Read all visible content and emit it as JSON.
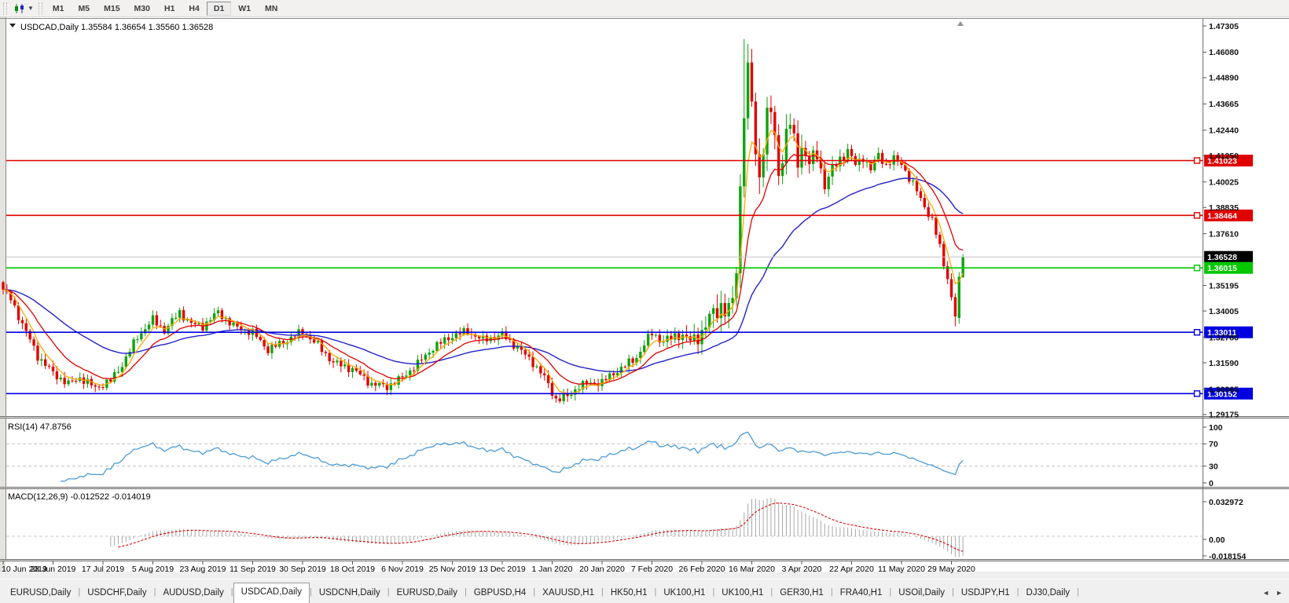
{
  "toolbar": {
    "chart_icon": "candlestick-chart-icon",
    "dropdown_icon": "chevron-down-icon",
    "timeframes": [
      "M1",
      "M5",
      "M15",
      "M30",
      "H1",
      "H4",
      "D1",
      "W1",
      "MN"
    ],
    "active_timeframe": "D1"
  },
  "chart": {
    "title": "USDCAD,Daily 1.35584 1.36654 1.35560 1.36528",
    "symbol": "USDCAD",
    "timeframe": "Daily"
  },
  "price_axis": {
    "ticks": [
      "1.47305",
      "1.46080",
      "1.44890",
      "1.43665",
      "1.42440",
      "1.41250",
      "1.40025",
      "1.38835",
      "1.37610",
      "1.35195",
      "1.34005",
      "1.32780",
      "1.31590",
      "1.30365",
      "1.29175"
    ]
  },
  "rsi": {
    "title": "RSI(14) 47.8756",
    "axis": [
      "100",
      "70",
      "30",
      "0"
    ]
  },
  "macd": {
    "title": "MACD(12,26,9) -0.012522 -0.014019",
    "axis": [
      "0.032972",
      "0.00",
      "-0.018154"
    ]
  },
  "dates": [
    "10 Jun 2019",
    "28 Jun 2019",
    "17 Jul 2019",
    "5 Aug 2019",
    "23 Aug 2019",
    "11 Sep 2019",
    "30 Sep 2019",
    "18 Oct 2019",
    "6 Nov 2019",
    "25 Nov 2019",
    "13 Dec 2019",
    "1 Jan 2020",
    "20 Jan 2020",
    "7 Feb 2020",
    "26 Feb 2020",
    "16 Mar 2020",
    "3 Apr 2020",
    "22 Apr 2020",
    "11 May 2020",
    "29 May 2020"
  ],
  "tabs": {
    "items": [
      "EURUSD,Daily",
      "USDCHF,Daily",
      "AUDUSD,Daily",
      "USDCAD,Daily",
      "USDCNH,Daily",
      "EURUSD,Daily",
      "GBPUSD,H4",
      "XAUUSD,H1",
      "HK50,H1",
      "UK100,H1",
      "UK100,H1",
      "GER30,H1",
      "FRA40,H1",
      "USOil,Daily",
      "USDJPY,H1",
      "DJ30,Daily"
    ],
    "active_index": 3,
    "nav_left": "◄",
    "nav_right": "►"
  },
  "chart_data": {
    "type": "candlestick",
    "symbol": "USDCAD",
    "timeframe": "Daily",
    "last_bar": {
      "open": 1.35584,
      "high": 1.36654,
      "low": 1.3556,
      "close": 1.36528
    },
    "price_range": [
      1.29175,
      1.47305
    ],
    "current_price": 1.36528,
    "horizontal_levels": [
      {
        "price": 1.41023,
        "color": "#E00000"
      },
      {
        "price": 1.38464,
        "color": "#E00000"
      },
      {
        "price": 1.36015,
        "color": "#00C800"
      },
      {
        "price": 1.33011,
        "color": "#0000E0"
      },
      {
        "price": 1.30152,
        "color": "#0000E0"
      }
    ],
    "indicators": [
      {
        "name": "RSI",
        "period": 14,
        "value": 47.8756,
        "levels": [
          70,
          30
        ]
      },
      {
        "name": "MACD",
        "fast": 12,
        "slow": 26,
        "signal": 9,
        "value": -0.012522,
        "signal_value": -0.014019,
        "range": [
          -0.018154,
          0.032972
        ]
      },
      {
        "name": "MA",
        "type": "EMA",
        "periods": [
          5,
          13,
          40
        ],
        "colors": [
          "#FFA800",
          "#DF0000",
          "#2222CC"
        ]
      }
    ],
    "x_labels": [
      "10 Jun 2019",
      "28 Jun 2019",
      "17 Jul 2019",
      "5 Aug 2019",
      "23 Aug 2019",
      "11 Sep 2019",
      "30 Sep 2019",
      "18 Oct 2019",
      "6 Nov 2019",
      "25 Nov 2019",
      "13 Dec 2019",
      "1 Jan 2020",
      "20 Jan 2020",
      "7 Feb 2020",
      "26 Feb 2020",
      "16 Mar 2020",
      "3 Apr 2020",
      "22 Apr 2020",
      "11 May 2020",
      "29 May 2020"
    ],
    "num_candles": 251,
    "close_waypoints": [
      [
        0,
        1.35
      ],
      [
        2,
        1.3455
      ],
      [
        5,
        1.334
      ],
      [
        9,
        1.319
      ],
      [
        13,
        1.311
      ],
      [
        17,
        1.306
      ],
      [
        20,
        1.309
      ],
      [
        24,
        1.3042
      ],
      [
        28,
        1.3075
      ],
      [
        31,
        1.315
      ],
      [
        35,
        1.328
      ],
      [
        39,
        1.336
      ],
      [
        42,
        1.331
      ],
      [
        46,
        1.3395
      ],
      [
        49,
        1.334
      ],
      [
        52,
        1.333
      ],
      [
        56,
        1.3395
      ],
      [
        60,
        1.333
      ],
      [
        65,
        1.33
      ],
      [
        69,
        1.322
      ],
      [
        73,
        1.3255
      ],
      [
        78,
        1.3305
      ],
      [
        82,
        1.324
      ],
      [
        86,
        1.316
      ],
      [
        91,
        1.313
      ],
      [
        96,
        1.306
      ],
      [
        100,
        1.3048
      ],
      [
        104,
        1.309
      ],
      [
        108,
        1.3155
      ],
      [
        112,
        1.323
      ],
      [
        117,
        1.3285
      ],
      [
        121,
        1.3305
      ],
      [
        125,
        1.3265
      ],
      [
        130,
        1.329
      ],
      [
        134,
        1.323
      ],
      [
        138,
        1.316
      ],
      [
        141,
        1.309
      ],
      [
        144,
        1.2988
      ],
      [
        147,
        1.3
      ],
      [
        150,
        1.3052
      ],
      [
        153,
        1.3062
      ],
      [
        156,
        1.3068
      ],
      [
        159,
        1.311
      ],
      [
        162,
        1.3145
      ],
      [
        165,
        1.3185
      ],
      [
        169,
        1.33
      ],
      [
        172,
        1.3255
      ],
      [
        176,
        1.3295
      ],
      [
        179,
        1.326
      ],
      [
        182,
        1.33
      ],
      [
        185,
        1.3395
      ],
      [
        187,
        1.3425
      ],
      [
        189,
        1.339
      ],
      [
        190,
        1.345
      ],
      [
        191,
        1.36
      ],
      [
        192,
        1.398
      ],
      [
        193,
        1.435
      ],
      [
        194,
        1.45
      ],
      [
        195,
        1.438
      ],
      [
        196,
        1.412
      ],
      [
        197,
        1.404
      ],
      [
        198,
        1.418
      ],
      [
        199,
        1.43
      ],
      [
        200,
        1.434
      ],
      [
        201,
        1.418
      ],
      [
        202,
        1.406
      ],
      [
        203,
        1.412
      ],
      [
        204,
        1.423
      ],
      [
        205,
        1.428
      ],
      [
        206,
        1.418
      ],
      [
        207,
        1.41
      ],
      [
        208,
        1.417
      ],
      [
        210,
        1.409
      ],
      [
        212,
        1.413
      ],
      [
        214,
        1.399
      ],
      [
        216,
        1.406
      ],
      [
        218,
        1.411
      ],
      [
        220,
        1.415
      ],
      [
        222,
        1.408
      ],
      [
        224,
        1.412
      ],
      [
        226,
        1.406
      ],
      [
        228,
        1.413
      ],
      [
        230,
        1.408
      ],
      [
        232,
        1.411
      ],
      [
        234,
        1.409
      ],
      [
        236,
        1.402
      ],
      [
        238,
        1.396
      ],
      [
        240,
        1.389
      ],
      [
        242,
        1.382
      ],
      [
        244,
        1.37
      ],
      [
        245,
        1.362
      ],
      [
        246,
        1.356
      ],
      [
        247,
        1.3465
      ],
      [
        248,
        1.3375
      ],
      [
        249,
        1.356
      ],
      [
        250,
        1.36528
      ]
    ]
  }
}
